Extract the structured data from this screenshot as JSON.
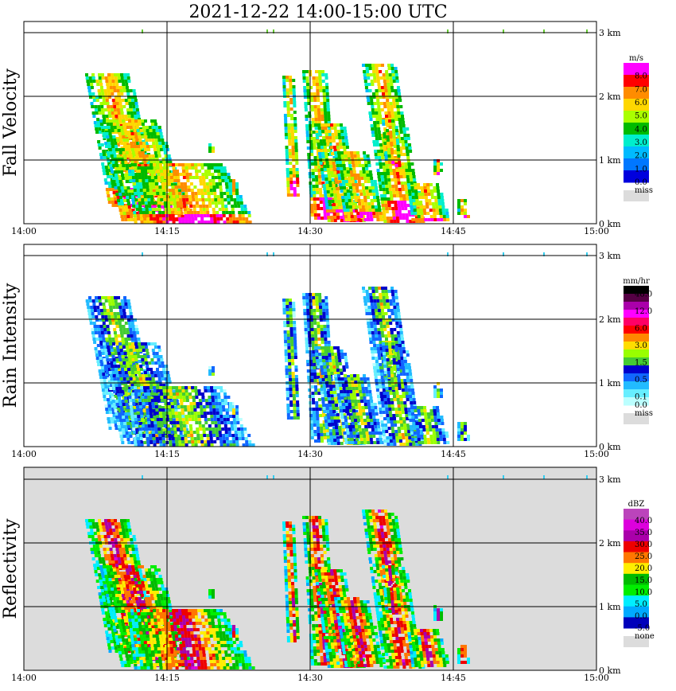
{
  "title": "2021-12-22   14:00-15:00 UTC",
  "colors": {
    "missing_gray": "#dcdcdc",
    "frame": "#000000"
  },
  "chart_data": [
    {
      "type": "heatmap",
      "ylabel": "Fall Velocity",
      "xlabel": "",
      "x_ticks": [
        "14:00",
        "14:15",
        "14:30",
        "14:45",
        "15:00"
      ],
      "x_range_minutes": [
        0,
        60
      ],
      "y_ticks": [
        "0 km",
        "1 km",
        "2 km",
        "3 km"
      ],
      "y_range_km": [
        0,
        3.0
      ],
      "grid": true,
      "background": "#ffffff",
      "colorbar": {
        "unit": "m/s",
        "labels": [
          "8.0",
          "7.0",
          "6.0",
          "5.0",
          "4.0",
          "3.0",
          "2.0",
          "1.0",
          "0.0"
        ],
        "colors": [
          "#ff00ff",
          "#ff0000",
          "#ff8c00",
          "#ffd700",
          "#aaff00",
          "#00bb00",
          "#00eecc",
          "#00bbff",
          "#0077ff",
          "#0000dd"
        ],
        "missing_label": "miss",
        "missing_color": "#dcdcdc"
      }
    },
    {
      "type": "heatmap",
      "ylabel": "Rain Intensity",
      "xlabel": "",
      "x_ticks": [
        "14:00",
        "14:15",
        "14:30",
        "14:45",
        "15:00"
      ],
      "x_range_minutes": [
        0,
        60
      ],
      "y_ticks": [
        "0 km",
        "1 km",
        "2 km",
        "3 km"
      ],
      "y_range_km": [
        0,
        3.0
      ],
      "grid": true,
      "background": "#ffffff",
      "colorbar": {
        "unit": "mm/hr",
        "labels": [
          "48.0",
          "",
          "12.0",
          "",
          "6.0",
          "",
          "3.0",
          "",
          "1.5",
          "",
          "0.5",
          "",
          "0.1",
          "0.0"
        ],
        "colors": [
          "#000000",
          "#550044",
          "#aa00aa",
          "#ff00ff",
          "#ff0066",
          "#ff0000",
          "#ff8800",
          "#ffdd00",
          "#99ff00",
          "#44cc33",
          "#0000cc",
          "#1166ff",
          "#22bbff",
          "#66eeff",
          "#bbffff"
        ],
        "missing_label": "miss",
        "missing_color": "#dcdcdc"
      }
    },
    {
      "type": "heatmap",
      "ylabel": "Reflectivity",
      "xlabel": "",
      "x_ticks": [
        "14:00",
        "14:15",
        "14:30",
        "14:45",
        "15:00"
      ],
      "x_range_minutes": [
        0,
        60
      ],
      "y_ticks": [
        "0 km",
        "1 km",
        "2 km",
        "3 km"
      ],
      "y_range_km": [
        0,
        3.0
      ],
      "grid": true,
      "background": "#dcdcdc",
      "colorbar": {
        "unit": "dBZ",
        "labels": [
          "40.0",
          "35.0",
          "30.0",
          "25.0",
          "20.0",
          "15.0",
          "10.0",
          "5.0",
          "0.0",
          "-5.0"
        ],
        "colors": [
          "#bb44bb",
          "#dd00dd",
          "#aa00aa",
          "#ee0000",
          "#ff7700",
          "#ffee00",
          "#00bb00",
          "#00ee00",
          "#00eeff",
          "#00aaff",
          "#0000bb"
        ],
        "missing_label": "none",
        "missing_color": "#dcdcdc"
      }
    }
  ]
}
